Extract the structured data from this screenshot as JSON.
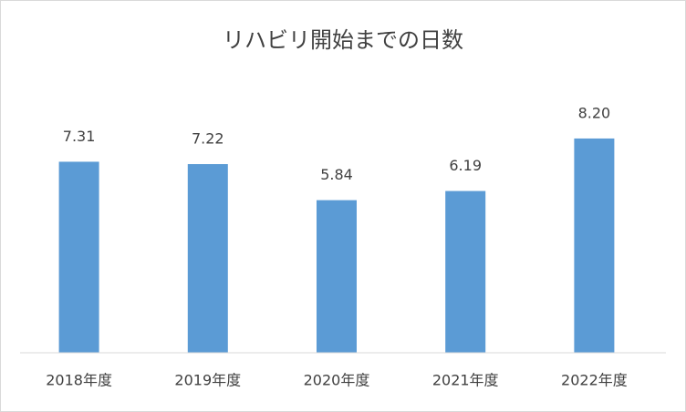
{
  "chart_data": {
    "type": "bar",
    "title": "リハビリ開始までの日数",
    "categories": [
      "2018年度",
      "2019年度",
      "2020年度",
      "2021年度",
      "2022年度"
    ],
    "values": [
      7.31,
      7.22,
      5.84,
      6.19,
      8.2
    ],
    "value_labels": [
      "7.31",
      "7.22",
      "5.84",
      "6.19",
      "8.20"
    ],
    "color": "#5b9bd5",
    "ylim": [
      0,
      9
    ]
  }
}
